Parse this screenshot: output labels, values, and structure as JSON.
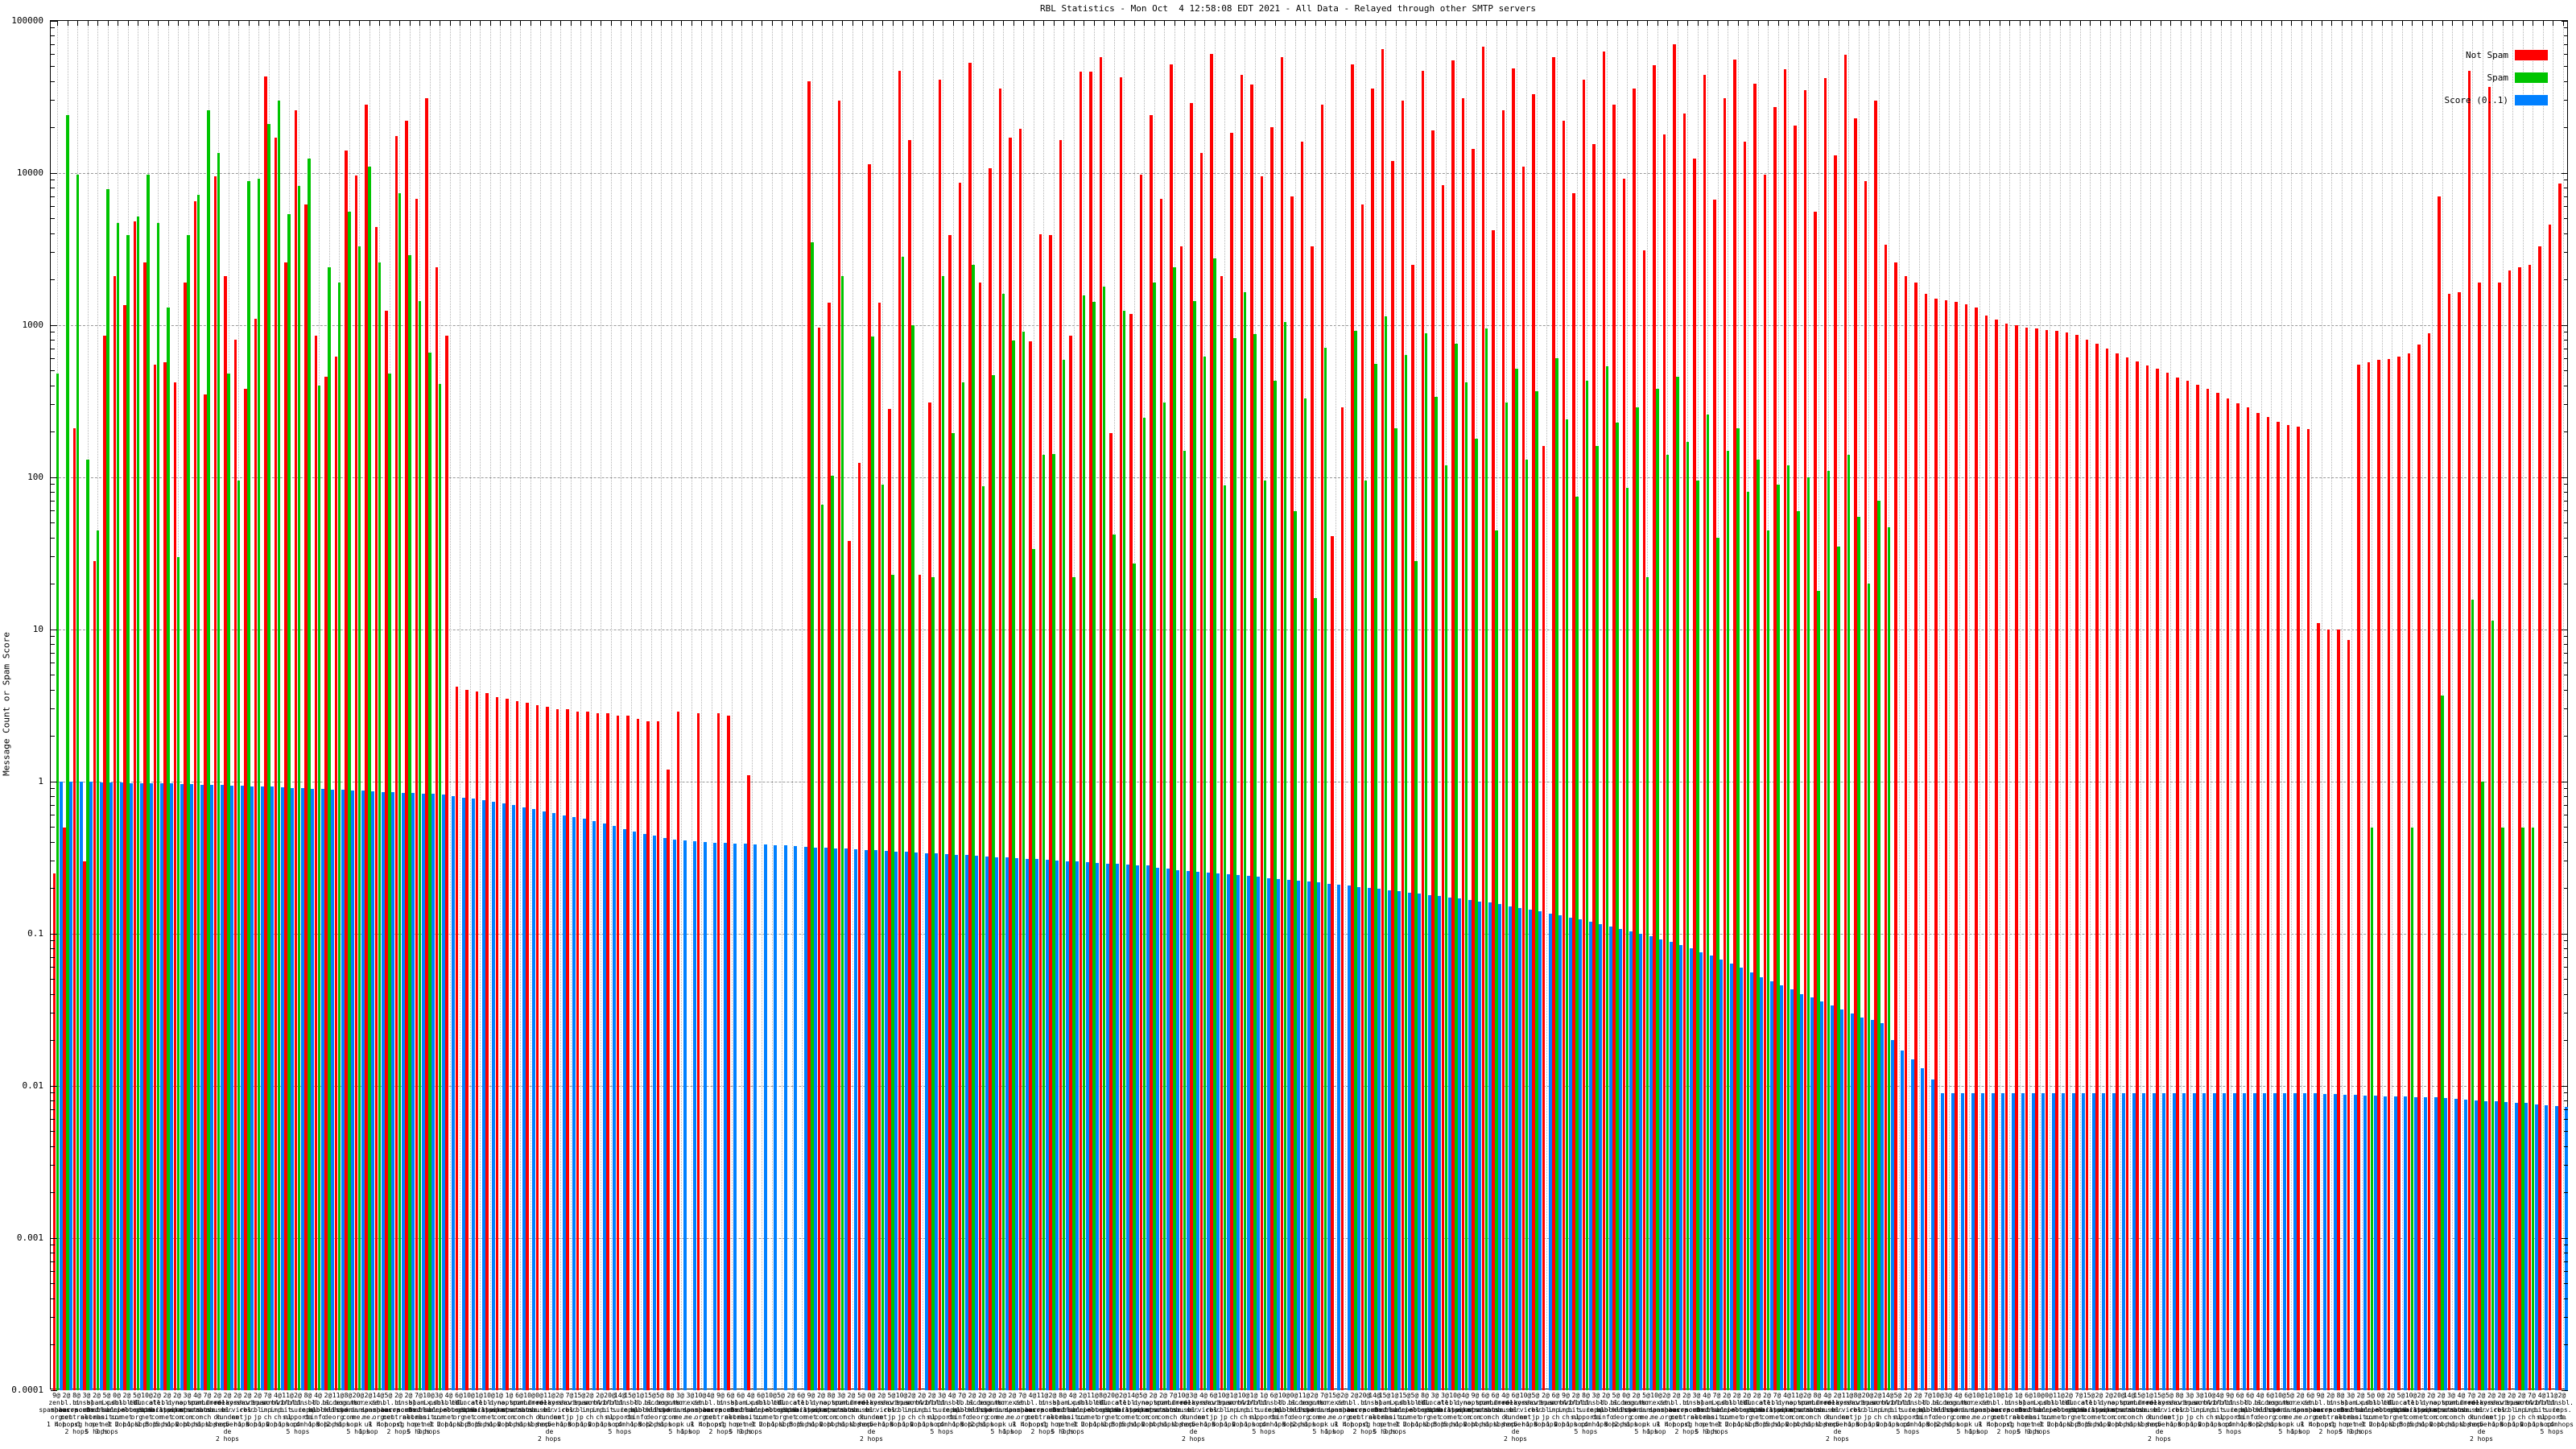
{
  "title": "RBL Statistics - Mon Oct  4 12:58:08 EDT 2021 - All Data - Relayed through other SMTP servers",
  "y_axis": {
    "label": "Message Count or Spam Score",
    "tick_labels": [
      "100000",
      "10000",
      "1000",
      "100",
      "10",
      "1",
      "0.1",
      "0.01",
      "0.001",
      "0.0001"
    ]
  },
  "legend": {
    "entries": [
      {
        "label": "Not Spam",
        "color": "#ff0000"
      },
      {
        "label": "Spam",
        "color": "#00c400"
      },
      {
        "label": "Score (0..1)",
        "color": "#0080ff"
      }
    ]
  },
  "chart_data": {
    "type": "bar",
    "title": "RBL Statistics - Mon Oct  4 12:58:08 EDT 2021 - All Data - Relayed through other SMTP servers",
    "ylabel": "Message Count or Spam Score",
    "y_scale": "log10",
    "ylim": [
      0.0001,
      100000
    ],
    "grid": true,
    "legend_position": "top-right",
    "series": [
      {
        "name": "Not Spam",
        "color": "#ff0000"
      },
      {
        "name": "Spam",
        "color": "#00c400"
      },
      {
        "name": "Score (0..1)",
        "color": "#0080ff"
      }
    ],
    "groups": [
      [
        0.25,
        480,
        1.0
      ],
      [
        0.5,
        24000,
        1.0
      ],
      [
        210,
        9800,
        1.0
      ],
      [
        0.3,
        130,
        1.0
      ],
      [
        28,
        45,
        0.99
      ],
      [
        850,
        7800,
        0.99
      ],
      [
        2100,
        4700,
        0.99
      ],
      [
        1350,
        3900,
        0.98
      ],
      [
        4800,
        5200,
        0.98
      ],
      [
        2600,
        9800,
        0.978
      ],
      [
        550,
        4700,
        0.975
      ],
      [
        570,
        1300,
        0.972
      ],
      [
        420,
        30,
        0.968
      ],
      [
        1900,
        3900,
        0.963
      ],
      [
        6500,
        7200,
        0.958
      ],
      [
        350,
        26000,
        0.952
      ],
      [
        9500,
        13500,
        0.947
      ],
      [
        2100,
        480,
        0.943
      ],
      [
        800,
        95,
        0.938
      ],
      [
        380,
        8800,
        0.935
      ],
      [
        1100,
        9200,
        0.93
      ],
      [
        43000,
        21000,
        0.924
      ],
      [
        17000,
        30000,
        0.918
      ],
      [
        2600,
        5400,
        0.912
      ],
      [
        26000,
        8200,
        0.906
      ],
      [
        6200,
        12500,
        0.9
      ],
      [
        850,
        400,
        0.894
      ],
      [
        460,
        2400,
        0.888
      ],
      [
        620,
        1900,
        0.882
      ],
      [
        14000,
        5600,
        0.876
      ],
      [
        9600,
        3300,
        0.87
      ],
      [
        28000,
        11000,
        0.864
      ],
      [
        4400,
        2600,
        0.858
      ],
      [
        1250,
        480,
        0.852
      ],
      [
        17500,
        7400,
        0.846
      ],
      [
        22000,
        2900,
        0.84
      ],
      [
        6800,
        1450,
        0.834
      ],
      [
        31000,
        660,
        0.828
      ],
      [
        2400,
        410,
        0.822
      ],
      [
        850,
        null,
        0.8
      ],
      [
        4.2,
        null,
        0.785
      ],
      [
        4.0,
        null,
        0.77
      ],
      [
        3.9,
        null,
        0.755
      ],
      [
        3.8,
        null,
        0.74
      ],
      [
        3.6,
        null,
        0.72
      ],
      [
        3.5,
        null,
        0.7
      ],
      [
        3.4,
        null,
        0.68
      ],
      [
        3.3,
        null,
        0.66
      ],
      [
        3.2,
        null,
        0.64
      ],
      [
        3.1,
        null,
        0.62
      ],
      [
        3.0,
        null,
        0.6
      ],
      [
        3.0,
        null,
        0.585
      ],
      [
        2.9,
        null,
        0.57
      ],
      [
        2.9,
        null,
        0.55
      ],
      [
        2.8,
        null,
        0.53
      ],
      [
        2.8,
        null,
        0.51
      ],
      [
        2.7,
        null,
        0.49
      ],
      [
        2.7,
        null,
        0.47
      ],
      [
        2.6,
        null,
        0.455
      ],
      [
        2.5,
        null,
        0.44
      ],
      [
        2.5,
        null,
        0.425
      ],
      [
        1.2,
        null,
        0.415
      ],
      [
        2.9,
        null,
        0.41
      ],
      [
        null,
        null,
        0.405
      ],
      [
        2.8,
        null,
        0.4
      ],
      [
        null,
        null,
        0.398
      ],
      [
        2.8,
        null,
        0.395
      ],
      [
        2.7,
        null,
        0.392
      ],
      [
        null,
        null,
        0.39
      ],
      [
        1.1,
        null,
        0.388
      ],
      [
        null,
        null,
        0.385
      ],
      [
        null,
        null,
        0.382
      ],
      [
        null,
        null,
        0.38
      ],
      [
        null,
        null,
        0.378
      ],
      [
        null,
        null,
        0.375
      ],
      [
        40000,
        3500,
        0.37
      ],
      [
        960,
        66,
        0.367
      ],
      [
        1400,
        103,
        0.364
      ],
      [
        30000,
        2100,
        0.362
      ],
      [
        38,
        null,
        0.359
      ],
      [
        125,
        null,
        0.356
      ],
      [
        11500,
        840,
        0.353
      ],
      [
        1400,
        90,
        0.35
      ],
      [
        280,
        23,
        0.348
      ],
      [
        47000,
        2800,
        0.345
      ],
      [
        16500,
        1000,
        0.342
      ],
      [
        23,
        null,
        0.339
      ],
      [
        310,
        22,
        0.337
      ],
      [
        41000,
        2100,
        0.334
      ],
      [
        3900,
        195,
        0.331
      ],
      [
        8600,
        420,
        0.328
      ],
      [
        53000,
        2500,
        0.326
      ],
      [
        1900,
        87,
        0.323
      ],
      [
        10700,
        470,
        0.32
      ],
      [
        36000,
        1600,
        0.317
      ],
      [
        17000,
        790,
        0.315
      ],
      [
        19500,
        905,
        0.312
      ],
      [
        780,
        34,
        0.309
      ],
      [
        3950,
        140,
        0.306
      ],
      [
        3930,
        142,
        0.304
      ],
      [
        16500,
        590,
        0.301
      ],
      [
        855,
        22,
        0.298
      ],
      [
        46500,
        1570,
        0.295
      ],
      [
        46500,
        1430,
        0.293
      ],
      [
        58000,
        1800,
        0.29
      ],
      [
        195,
        42,
        0.287
      ],
      [
        42500,
        1250,
        0.284
      ],
      [
        1180,
        27,
        0.282
      ],
      [
        9800,
        245,
        0.28
      ],
      [
        24000,
        1900,
        0.27
      ],
      [
        6800,
        310,
        0.267
      ],
      [
        52000,
        2400,
        0.263
      ],
      [
        3300,
        150,
        0.26
      ],
      [
        29000,
        1450,
        0.257
      ],
      [
        13500,
        620,
        0.253
      ],
      [
        61000,
        2750,
        0.25
      ],
      [
        2100,
        88,
        0.247
      ],
      [
        18500,
        820,
        0.243
      ],
      [
        44000,
        1650,
        0.24
      ],
      [
        38000,
        870,
        0.237
      ],
      [
        9500,
        95,
        0.233
      ],
      [
        20000,
        430,
        0.23
      ],
      [
        58000,
        1050,
        0.227
      ],
      [
        7000,
        60,
        0.223
      ],
      [
        16000,
        330,
        0.22
      ],
      [
        3300,
        16,
        0.217
      ],
      [
        28000,
        710,
        0.213
      ],
      [
        41,
        null,
        0.21
      ],
      [
        290,
        null,
        0.207
      ],
      [
        52000,
        920,
        0.203
      ],
      [
        6200,
        95,
        0.2
      ],
      [
        36000,
        560,
        0.197
      ],
      [
        65000,
        1150,
        0.193
      ],
      [
        12000,
        210,
        0.19
      ],
      [
        30000,
        640,
        0.187
      ],
      [
        2500,
        28,
        0.183
      ],
      [
        47000,
        880,
        0.18
      ],
      [
        19000,
        340,
        0.177
      ],
      [
        8300,
        120,
        0.173
      ],
      [
        55000,
        760,
        0.17
      ],
      [
        31000,
        420,
        0.167
      ],
      [
        14500,
        180,
        0.163
      ],
      [
        68000,
        950,
        0.16
      ],
      [
        4200,
        45,
        0.156
      ],
      [
        26000,
        310,
        0.152
      ],
      [
        49000,
        520,
        0.148
      ],
      [
        11000,
        130,
        0.144
      ],
      [
        33000,
        370,
        0.14
      ],
      [
        160,
        null,
        0.136
      ],
      [
        58000,
        610,
        0.132
      ],
      [
        22000,
        240,
        0.128
      ],
      [
        7400,
        75,
        0.124
      ],
      [
        41000,
        430,
        0.12
      ],
      [
        15500,
        160,
        0.116
      ],
      [
        63000,
        540,
        0.112
      ],
      [
        28000,
        230,
        0.108
      ],
      [
        9200,
        85,
        0.104
      ],
      [
        36000,
        290,
        0.1
      ],
      [
        3100,
        22,
        0.096
      ],
      [
        51000,
        380,
        0.092
      ],
      [
        18000,
        140,
        0.088
      ],
      [
        70000,
        460,
        0.084
      ],
      [
        24500,
        170,
        0.08
      ],
      [
        12500,
        95,
        0.076
      ],
      [
        44000,
        260,
        0.072
      ],
      [
        6700,
        40,
        0.068
      ],
      [
        31000,
        150,
        0.064
      ],
      [
        56000,
        210,
        0.06
      ],
      [
        16000,
        80,
        0.056
      ],
      [
        38500,
        130,
        0.052
      ],
      [
        9800,
        45,
        0.049
      ],
      [
        27000,
        90,
        0.046
      ],
      [
        48000,
        120,
        0.043
      ],
      [
        20500,
        60,
        0.04
      ],
      [
        35000,
        100,
        0.038
      ],
      [
        5600,
        18,
        0.036
      ],
      [
        42000,
        110,
        0.034
      ],
      [
        13000,
        35,
        0.032
      ],
      [
        60000,
        140,
        0.03
      ],
      [
        23000,
        55,
        0.028
      ],
      [
        8800,
        20,
        0.027
      ],
      [
        30000,
        70,
        0.026
      ],
      [
        3400,
        47,
        0.02
      ],
      [
        2600,
        null,
        0.017
      ],
      [
        2100,
        null,
        0.015
      ],
      [
        1900,
        null,
        0.013
      ],
      [
        1600,
        null,
        0.011
      ],
      [
        1500,
        null,
        0.009
      ],
      [
        1460,
        null,
        0.009
      ],
      [
        1420,
        null,
        0.009
      ],
      [
        1380,
        null,
        0.009
      ],
      [
        1300,
        null,
        0.009
      ],
      [
        1160,
        null,
        0.009
      ],
      [
        1090,
        null,
        0.009
      ],
      [
        1030,
        null,
        0.009
      ],
      [
        995,
        null,
        0.009
      ],
      [
        965,
        null,
        0.009
      ],
      [
        950,
        null,
        0.009
      ],
      [
        935,
        null,
        0.009
      ],
      [
        920,
        null,
        0.009
      ],
      [
        900,
        null,
        0.009
      ],
      [
        865,
        null,
        0.009
      ],
      [
        805,
        null,
        0.009
      ],
      [
        760,
        null,
        0.009
      ],
      [
        705,
        null,
        0.009
      ],
      [
        655,
        null,
        0.009
      ],
      [
        615,
        null,
        0.009
      ],
      [
        575,
        null,
        0.009
      ],
      [
        545,
        null,
        0.009
      ],
      [
        515,
        null,
        0.009
      ],
      [
        485,
        null,
        0.009
      ],
      [
        455,
        null,
        0.009
      ],
      [
        430,
        null,
        0.009
      ],
      [
        405,
        null,
        0.009
      ],
      [
        382,
        null,
        0.009
      ],
      [
        358,
        null,
        0.009
      ],
      [
        332,
        null,
        0.009
      ],
      [
        308,
        null,
        0.009
      ],
      [
        287,
        null,
        0.009
      ],
      [
        266,
        null,
        0.009
      ],
      [
        248,
        null,
        0.009
      ],
      [
        232,
        null,
        0.009
      ],
      [
        222,
        null,
        0.009
      ],
      [
        215,
        null,
        0.009
      ],
      [
        208,
        null,
        0.009
      ],
      [
        11,
        null,
        0.0088
      ],
      [
        10,
        null,
        0.0088
      ],
      [
        10,
        null,
        0.0087
      ],
      [
        8.5,
        null,
        0.0087
      ],
      [
        550,
        null,
        0.0086
      ],
      [
        570,
        0.5,
        0.0086
      ],
      [
        590,
        null,
        0.0085
      ],
      [
        600,
        null,
        0.0085
      ],
      [
        620,
        null,
        0.0085
      ],
      [
        650,
        0.5,
        0.0084
      ],
      [
        750,
        null,
        0.0084
      ],
      [
        890,
        null,
        0.0084
      ],
      [
        7000,
        3.7,
        0.0083
      ],
      [
        1600,
        null,
        0.0082
      ],
      [
        1650,
        null,
        0.0081
      ],
      [
        47000,
        15.6,
        0.008
      ],
      [
        1900,
        1.0,
        0.0079
      ],
      [
        37000,
        11.5,
        0.0079
      ],
      [
        1900,
        0.5,
        0.0078
      ],
      [
        2300,
        null,
        0.0077
      ],
      [
        2400,
        0.5,
        0.0077
      ],
      [
        2500,
        0.5,
        0.0076
      ],
      [
        3300,
        null,
        0.0075
      ],
      [
        4600,
        null,
        0.0074
      ],
      [
        8500,
        null,
        0.0073
      ]
    ],
    "x_label_counts": [
      9,
      2,
      8,
      3,
      2,
      5,
      0,
      2,
      5,
      10,
      2,
      2,
      2,
      3,
      4,
      7,
      2,
      2,
      2,
      2,
      2,
      7,
      4,
      11,
      2,
      8,
      4,
      2,
      11,
      8,
      20,
      2,
      14,
      5,
      2,
      2,
      7,
      10,
      3,
      4,
      6,
      10,
      1,
      10,
      1,
      1,
      6,
      10,
      0,
      11,
      2,
      7,
      15,
      2,
      2,
      20,
      14,
      15,
      1,
      15,
      5,
      8,
      3,
      3,
      10,
      4,
      9,
      6,
      6,
      4,
      6,
      10,
      5,
      2,
      6
    ],
    "x_label_hosts": [
      [
        "zen.",
        "spamhaus.",
        "org"
      ],
      [
        "bl.",
        "spamcop.",
        "net"
      ],
      [
        "b.",
        "barracuda",
        "central.",
        "org"
      ],
      [
        "dnsbl.",
        "sorbs.",
        "net"
      ],
      [
        "spam.",
        "dnsbl.",
        "sorbs.",
        "net"
      ],
      [
        "ix.",
        "dnsbl.",
        "manitu.",
        "net"
      ],
      [
        "psbl.",
        "surriel.",
        "com"
      ],
      [
        "dnsbl-1.",
        "uceprotect.",
        "net"
      ],
      [
        "cbl.",
        "abuseat.",
        "org"
      ],
      [
        "truncate.",
        "gbudb.",
        "net"
      ],
      [
        "all.",
        "spamrats.",
        "com"
      ],
      [
        "bl.",
        "mailspike.",
        "net"
      ],
      [
        "dyna.",
        "spamrats.",
        "com"
      ],
      [
        "noptr.",
        "spamrats.",
        "com"
      ],
      [
        "spam.",
        "spamrats.",
        "com"
      ],
      [
        "combined.",
        "abuse.",
        "ch"
      ],
      [
        "drone.",
        "abuse.",
        "ch"
      ],
      [
        "relays.",
        "bl.",
        "kunden",
        "server.",
        "de"
      ],
      [
        "korea.",
        "services.",
        "net"
      ],
      [
        "short.",
        "rbl.",
        "jp"
      ],
      [
        "virus.",
        "rbl.",
        "jp"
      ],
      [
        "spamrbl.",
        "imp.",
        "ch"
      ],
      [
        "wormrbl.",
        "imp.",
        "ch"
      ],
      [
        "virbl.",
        "bit.",
        "nl"
      ],
      [
        "rbl.",
        "sure",
        "support.",
        "com"
      ],
      [
        "dnsbl.",
        "inps.",
        "de"
      ],
      [
        "db.",
        "wpbl.",
        "info"
      ],
      [
        "bl.",
        "blocklist.",
        "de"
      ],
      [
        "access.",
        "redhawk.",
        "org"
      ],
      [
        "bogons.",
        "cymru.",
        "com"
      ],
      [
        "tor.",
        "dan.",
        "me.",
        "uk"
      ],
      [
        "torexit.",
        "dan.",
        "me.",
        "uk"
      ]
    ],
    "x_label_hops": [
      "1 hop",
      "4 hops",
      "2 hops",
      "1 hop",
      "5 hops",
      "3 hops",
      "1 hop",
      "2 hops",
      "1 hop",
      "1 hop",
      "3 hops",
      "5 hops",
      "1 hop",
      "2 hops",
      "4 hops",
      "1 hop",
      "1 hop",
      "2 hops",
      "5 hops",
      "1 hop",
      "3 hops",
      "1 hop",
      "2 hops",
      "1 hop",
      "5 hops",
      "4 hops",
      "1 hop",
      "3 hops",
      "2 hops",
      "1 hop",
      "5 hops",
      "1 hop"
    ]
  }
}
